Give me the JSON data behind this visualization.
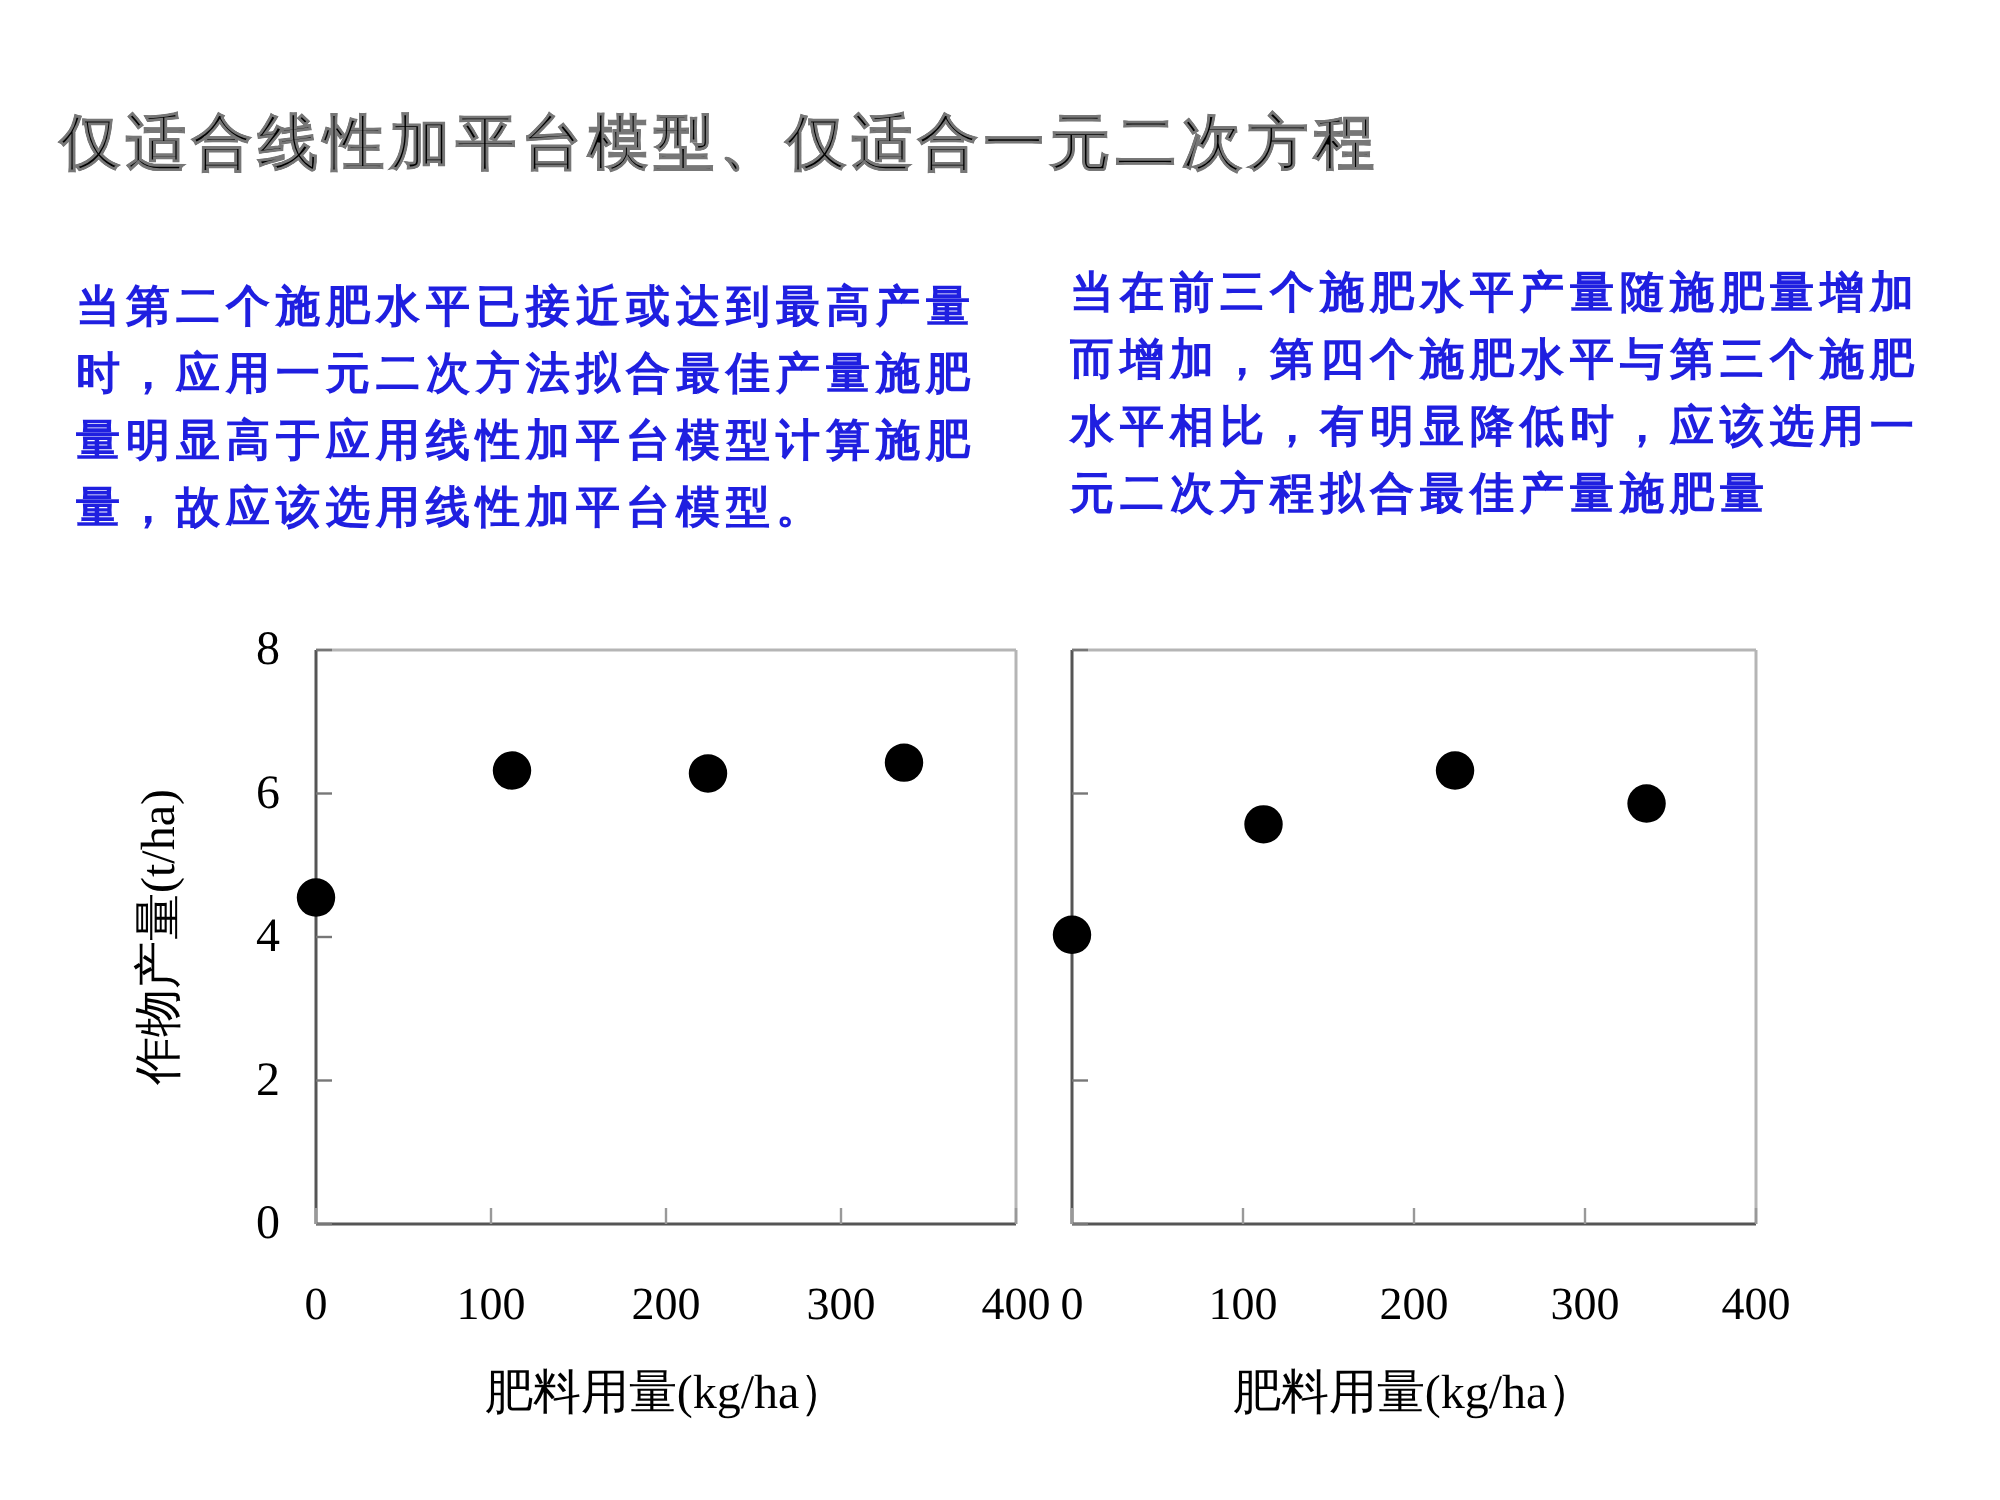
{
  "chart_data": [
    {
      "type": "scatter",
      "title": "仅适合线性加平台模型、仅适合一元二次方程",
      "annotations": [
        "当第二个施肥水平已接近或达到最高产量时，应用一元二次方法拟合最佳产量施肥量明显高于应用线性加平台模型计算施肥量，故应该选用线性加平台模型。"
      ],
      "xlabel": "肥料用量(kg/ha）",
      "ylabel": "作物产量(t/ha)",
      "x": [
        0,
        112,
        224,
        336
      ],
      "series": [
        {
          "color": "#000000",
          "values": [
            4.55,
            6.32,
            6.28,
            6.43
          ]
        }
      ],
      "xlim": [
        0,
        400
      ],
      "xticks": [
        0,
        100,
        200,
        300,
        400
      ],
      "ylim": [
        0,
        8
      ],
      "yticks": [
        0,
        2,
        4,
        6,
        8
      ],
      "marker": "circle"
    },
    {
      "type": "scatter",
      "annotations": [
        "当在前三个施肥水平产量随施肥量增加而增加，第四个施肥水平与第三个施肥水平相比，有明显降低时，应该选用一元二次方程拟合最佳产量施肥量"
      ],
      "xlabel": "肥料用量(kg/ha）",
      "x": [
        0,
        112,
        224,
        336
      ],
      "series": [
        {
          "color": "#000000",
          "values": [
            4.03,
            5.57,
            6.32,
            5.86
          ]
        }
      ],
      "xlim": [
        0,
        400
      ],
      "xticks": [
        0,
        100,
        200,
        300,
        400
      ],
      "ylim": [
        0,
        8
      ],
      "yticks": [
        0,
        2,
        4,
        6,
        8
      ],
      "marker": "circle",
      "tick_labels": "x"
    }
  ]
}
